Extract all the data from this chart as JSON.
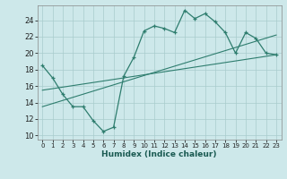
{
  "xlabel": "Humidex (Indice chaleur)",
  "ylabel": "",
  "bg_color": "#cde8ea",
  "line_color": "#2e7d6e",
  "grid_color": "#a8cccc",
  "xlim": [
    -0.5,
    23.5
  ],
  "ylim": [
    9.5,
    25.8
  ],
  "xticks": [
    0,
    1,
    2,
    3,
    4,
    5,
    6,
    7,
    8,
    9,
    10,
    11,
    12,
    13,
    14,
    15,
    16,
    17,
    18,
    19,
    20,
    21,
    22,
    23
  ],
  "yticks": [
    10,
    12,
    14,
    16,
    18,
    20,
    22,
    24
  ],
  "curve_x": [
    0,
    1,
    2,
    3,
    4,
    5,
    6,
    7,
    8,
    9,
    10,
    11,
    12,
    13,
    14,
    15,
    16,
    17,
    18,
    19,
    20,
    21,
    22,
    23
  ],
  "curve_y": [
    18.5,
    17.0,
    15.0,
    13.5,
    13.5,
    11.8,
    10.5,
    11.0,
    17.2,
    19.5,
    22.7,
    23.3,
    23.0,
    22.5,
    25.2,
    24.2,
    24.8,
    23.8,
    22.5,
    20.0,
    22.5,
    21.8,
    20.0,
    19.8
  ],
  "line1_x": [
    0,
    23
  ],
  "line1_y": [
    15.5,
    19.8
  ],
  "line2_x": [
    0,
    23
  ],
  "line2_y": [
    13.5,
    22.2
  ]
}
